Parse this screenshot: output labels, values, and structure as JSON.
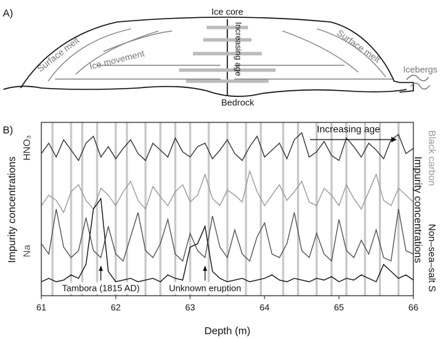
{
  "diagram": {
    "panel_label": "A)",
    "ice_core": "Ice core",
    "surface_melt_left": "Surface melt",
    "surface_melt_right": "Surface melt",
    "ice_movement": "Ice movement",
    "increasing_age": "Increasing age",
    "icebergs": "Icebergs",
    "bedrock": "Bedrock"
  },
  "chart_data": {
    "type": "line",
    "panel_label": "B)",
    "xlabel": "Depth (m)",
    "ylabel_left": "Impurity concentrations",
    "ylabel_right": "Impurity concentrations",
    "xlim": [
      61,
      66
    ],
    "xticks": [
      61,
      62,
      63,
      64,
      65,
      66
    ],
    "ylim": [
      0,
      100
    ],
    "annual_layers": [
      61.15,
      61.4,
      61.55,
      61.75,
      62.0,
      62.15,
      62.4,
      62.6,
      62.8,
      63.0,
      63.25,
      63.5,
      63.75,
      63.95,
      64.25,
      64.45,
      64.7,
      64.9,
      65.1,
      65.35,
      65.55,
      65.8
    ],
    "annotations": [
      {
        "text": "Tambora (1815 AD)",
        "x": 61.8
      },
      {
        "text": "Unknown eruption",
        "x": 63.2
      },
      {
        "text": "Increasing age"
      }
    ],
    "x": [
      61,
      61.1,
      61.2,
      61.3,
      61.4,
      61.5,
      61.6,
      61.7,
      61.8,
      61.9,
      62,
      62.1,
      62.2,
      62.3,
      62.4,
      62.5,
      62.6,
      62.7,
      62.8,
      62.9,
      63,
      63.1,
      63.2,
      63.3,
      63.4,
      63.5,
      63.6,
      63.7,
      63.8,
      63.9,
      64,
      64.1,
      64.2,
      64.3,
      64.4,
      64.5,
      64.6,
      64.7,
      64.8,
      64.9,
      65,
      65.1,
      65.2,
      65.3,
      65.4,
      65.5,
      65.6,
      65.7,
      65.8,
      65.9,
      66
    ],
    "series": [
      {
        "name": "HNO₃",
        "color": "#333333",
        "side": "left",
        "values": [
          82,
          88,
          80,
          90,
          84,
          78,
          88,
          92,
          80,
          86,
          79,
          85,
          90,
          82,
          78,
          88,
          84,
          80,
          91,
          83,
          80,
          86,
          88,
          79,
          84,
          90,
          82,
          78,
          86,
          92,
          80,
          84,
          88,
          79,
          90,
          94,
          80,
          83,
          89,
          81,
          78,
          91,
          86,
          80,
          88,
          84,
          79,
          90,
          93,
          82,
          85
        ]
      },
      {
        "name": "Black carbon",
        "color": "#999999",
        "side": "right",
        "values": [
          52,
          58,
          55,
          48,
          60,
          64,
          55,
          50,
          62,
          58,
          52,
          60,
          66,
          55,
          50,
          63,
          57,
          52,
          60,
          64,
          54,
          58,
          70,
          56,
          52,
          61,
          58,
          54,
          72,
          60,
          52,
          58,
          64,
          55,
          60,
          66,
          54,
          52,
          62,
          58,
          52,
          64,
          56,
          50,
          60,
          70,
          55,
          52,
          62,
          58,
          54
        ]
      },
      {
        "name": "Na",
        "color": "#555555",
        "side": "left",
        "values": [
          30,
          24,
          50,
          28,
          22,
          26,
          45,
          26,
          22,
          40,
          24,
          20,
          34,
          48,
          26,
          22,
          30,
          44,
          24,
          20,
          36,
          26,
          22,
          46,
          28,
          22,
          38,
          24,
          20,
          34,
          42,
          24,
          22,
          30,
          48,
          26,
          22,
          36,
          24,
          20,
          44,
          26,
          22,
          32,
          24,
          38,
          22,
          20,
          50,
          26,
          24
        ]
      },
      {
        "name": "Non–sea–salt S",
        "color": "#111111",
        "side": "right",
        "values": [
          8,
          10,
          8,
          9,
          12,
          10,
          18,
          50,
          56,
          14,
          8,
          9,
          10,
          8,
          9,
          10,
          8,
          12,
          10,
          9,
          28,
          30,
          40,
          14,
          10,
          8,
          9,
          10,
          8,
          9,
          10,
          12,
          9,
          8,
          10,
          9,
          8,
          10,
          9,
          11,
          8,
          10,
          9,
          12,
          10,
          8,
          18,
          14,
          10,
          12,
          9
        ]
      }
    ]
  }
}
